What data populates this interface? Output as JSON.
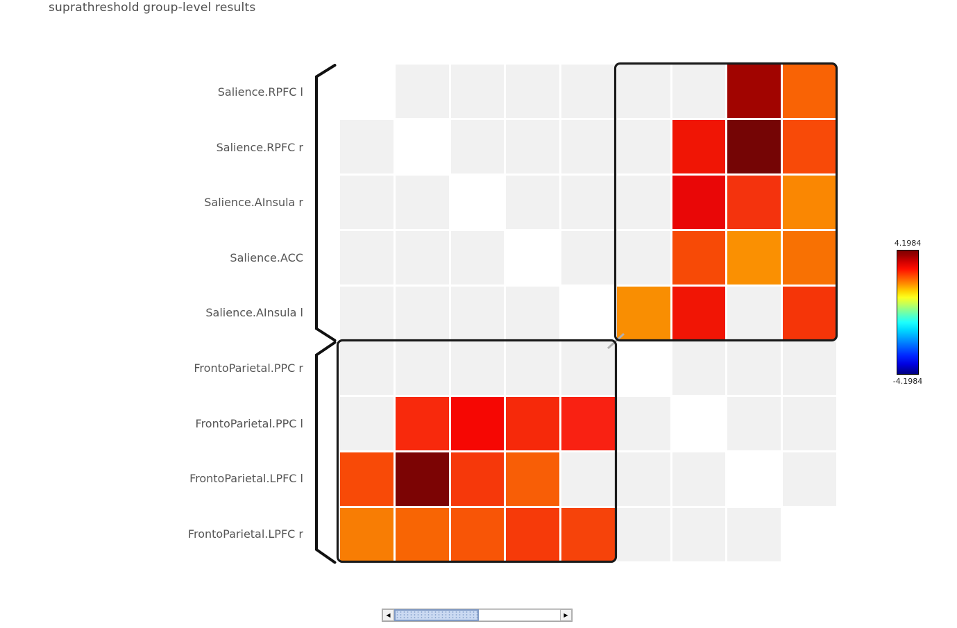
{
  "title": "suprathreshold group-level results",
  "chart_data": {
    "type": "heatmap",
    "title": "suprathreshold group-level results",
    "row_labels": [
      "Salience.RPFC l",
      "Salience.RPFC r",
      "Salience.AInsula r",
      "Salience.ACC",
      "Salience.AInsula l",
      "FrontoParietal.PPC r",
      "FrontoParietal.PPC l",
      "FrontoParietal.LPFC l",
      "FrontoParietal.LPFC r"
    ],
    "col_labels": [
      "Salience.RPFC l",
      "Salience.RPFC r",
      "Salience.AInsula r",
      "Salience.ACC",
      "Salience.AInsula l",
      "FrontoParietal.PPC r",
      "FrontoParietal.PPC l",
      "FrontoParietal.LPFC l",
      "FrontoParietal.LPFC r"
    ],
    "groups": [
      {
        "name": "Salience",
        "row_start": 0,
        "row_end": 4
      },
      {
        "name": "FrontoParietal",
        "row_start": 5,
        "row_end": 8
      }
    ],
    "value_range": [
      -4.1984,
      4.1984
    ],
    "colormap": "jet",
    "ns_color": "#f1f1f1",
    "diag_color": "#ffffff",
    "legend_position": "right",
    "colors": [
      [
        "#ffffff",
        "#f1f1f1",
        "#f1f1f1",
        "#f1f1f1",
        "#f1f1f1",
        "#f1f1f1",
        "#f1f1f1",
        "#a10400",
        "#f96305"
      ],
      [
        "#f1f1f1",
        "#ffffff",
        "#f1f1f1",
        "#f1f1f1",
        "#f1f1f1",
        "#f1f1f1",
        "#f01505",
        "#750505",
        "#f84a08"
      ],
      [
        "#f1f1f1",
        "#f1f1f1",
        "#ffffff",
        "#f1f1f1",
        "#f1f1f1",
        "#f1f1f1",
        "#e90707",
        "#f4330d",
        "#fa8702"
      ],
      [
        "#f1f1f1",
        "#f1f1f1",
        "#f1f1f1",
        "#ffffff",
        "#f1f1f1",
        "#f1f1f1",
        "#f74a06",
        "#fa9002",
        "#f87103"
      ],
      [
        "#f1f1f1",
        "#f1f1f1",
        "#f1f1f1",
        "#f1f1f1",
        "#ffffff",
        "#f98e02",
        "#f11505",
        "#f1f1f1",
        "#f53508"
      ],
      [
        "#f1f1f1",
        "#f1f1f1",
        "#f1f1f1",
        "#f1f1f1",
        "#f1f1f1",
        "#ffffff",
        "#f1f1f1",
        "#f1f1f1",
        "#f1f1f1"
      ],
      [
        "#f1f1f1",
        "#f8290c",
        "#f60703",
        "#f6290a",
        "#f92112",
        "#f1f1f1",
        "#ffffff",
        "#f1f1f1",
        "#f1f1f1"
      ],
      [
        "#f84a07",
        "#7c0404",
        "#f6380a",
        "#f85e06",
        "#f1f1f1",
        "#f1f1f1",
        "#f1f1f1",
        "#ffffff",
        "#f1f1f1"
      ],
      [
        "#f87d04",
        "#f86504",
        "#f85506",
        "#f63a09",
        "#f6430a",
        "#f1f1f1",
        "#f1f1f1",
        "#f1f1f1",
        "#ffffff"
      ]
    ],
    "values": [
      [
        null,
        null,
        null,
        null,
        null,
        null,
        null,
        3.9,
        2.4
      ],
      [
        null,
        null,
        null,
        null,
        null,
        null,
        3.2,
        4.15,
        2.7
      ],
      [
        null,
        null,
        null,
        null,
        null,
        null,
        3.3,
        2.9,
        2.15
      ],
      [
        null,
        null,
        null,
        null,
        null,
        null,
        2.7,
        2.0,
        2.35
      ],
      [
        null,
        null,
        null,
        null,
        null,
        2.1,
        3.2,
        null,
        2.9
      ],
      [
        null,
        null,
        null,
        null,
        null,
        null,
        null,
        null,
        null
      ],
      [
        null,
        3.0,
        3.35,
        3.0,
        3.1,
        null,
        null,
        null,
        null
      ],
      [
        2.7,
        4.1,
        2.9,
        2.5,
        null,
        null,
        null,
        null,
        null
      ],
      [
        2.2,
        2.4,
        2.55,
        2.9,
        2.8,
        null,
        null,
        null,
        null
      ]
    ]
  },
  "colorbar": {
    "max_label": "4.1984",
    "min_label": "-4.1984"
  },
  "scrollbar": {
    "left_arrow_glyph": "◀",
    "right_arrow_glyph": "▶"
  },
  "colors": {
    "cluster_outline": "#1a1a1a",
    "bracket": "#111111",
    "label_text": "#555555"
  }
}
